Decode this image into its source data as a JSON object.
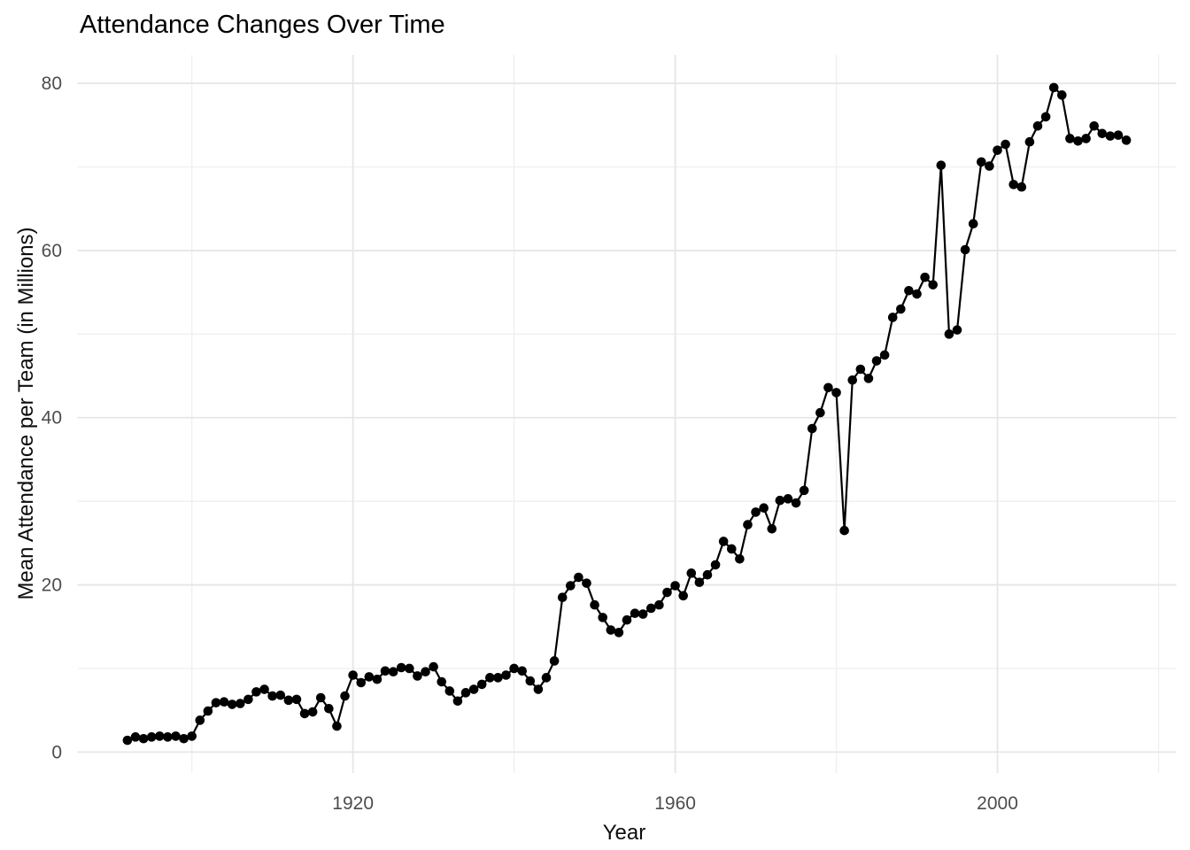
{
  "figure": {
    "title": "Attendance Changes Over Time",
    "background_color": "#ffffff"
  },
  "chart_data": {
    "type": "line",
    "title": "Attendance Changes Over Time",
    "xlabel": "Year",
    "ylabel": "Mean Attendance per Team (in Millions)",
    "grid": true,
    "legend_position": "none",
    "point_color": "#000000",
    "line_color": "#000000",
    "grid_major_color": "#e6e6e6",
    "grid_minor_color": "#eeeeee",
    "tick_label_color": "#4d4d4d",
    "x": [
      1892,
      1893,
      1894,
      1895,
      1896,
      1897,
      1898,
      1899,
      1900,
      1901,
      1902,
      1903,
      1904,
      1905,
      1906,
      1907,
      1908,
      1909,
      1910,
      1911,
      1912,
      1913,
      1914,
      1915,
      1916,
      1917,
      1918,
      1919,
      1920,
      1921,
      1922,
      1923,
      1924,
      1925,
      1926,
      1927,
      1928,
      1929,
      1930,
      1931,
      1932,
      1933,
      1934,
      1935,
      1936,
      1937,
      1938,
      1939,
      1940,
      1941,
      1942,
      1943,
      1944,
      1945,
      1946,
      1947,
      1948,
      1949,
      1950,
      1951,
      1952,
      1953,
      1954,
      1955,
      1956,
      1957,
      1958,
      1959,
      1960,
      1961,
      1962,
      1963,
      1964,
      1965,
      1966,
      1967,
      1968,
      1969,
      1970,
      1971,
      1972,
      1973,
      1974,
      1975,
      1976,
      1977,
      1978,
      1979,
      1980,
      1981,
      1982,
      1983,
      1984,
      1985,
      1986,
      1987,
      1988,
      1989,
      1990,
      1991,
      1992,
      1993,
      1994,
      1995,
      1996,
      1997,
      1998,
      1999,
      2000,
      2001,
      2002,
      2003,
      2004,
      2005,
      2006,
      2007,
      2008,
      2009,
      2010,
      2011,
      2012,
      2013,
      2014,
      2015,
      2016
    ],
    "values": [
      1.4,
      1.8,
      1.6,
      1.8,
      1.9,
      1.8,
      1.9,
      1.6,
      1.9,
      3.8,
      4.9,
      5.9,
      6.0,
      5.7,
      5.8,
      6.3,
      7.2,
      7.5,
      6.7,
      6.8,
      6.2,
      6.3,
      4.6,
      4.8,
      6.5,
      5.2,
      3.1,
      6.7,
      9.2,
      8.3,
      9.0,
      8.7,
      9.7,
      9.6,
      10.1,
      10.0,
      9.1,
      9.6,
      10.2,
      8.4,
      7.3,
      6.1,
      7.1,
      7.5,
      8.1,
      8.9,
      8.9,
      9.2,
      10.0,
      9.7,
      8.5,
      7.5,
      8.9,
      10.9,
      18.5,
      19.9,
      20.9,
      20.2,
      17.6,
      16.1,
      14.6,
      14.3,
      15.8,
      16.6,
      16.5,
      17.2,
      17.6,
      19.1,
      19.9,
      18.7,
      21.4,
      20.3,
      21.2,
      22.4,
      25.2,
      24.3,
      23.1,
      27.2,
      28.7,
      29.2,
      26.7,
      30.1,
      30.3,
      29.8,
      31.3,
      38.7,
      40.6,
      43.6,
      43.0,
      26.5,
      44.5,
      45.8,
      44.7,
      46.8,
      47.5,
      52.0,
      53.0,
      55.2,
      54.8,
      56.8,
      55.9,
      70.2,
      50.0,
      50.5,
      60.1,
      63.2,
      70.6,
      70.1,
      72.0,
      72.7,
      67.9,
      67.6,
      73.0,
      74.9,
      76.0,
      79.5,
      78.6,
      73.4,
      73.1,
      73.4,
      74.9,
      74.0,
      73.7,
      73.8,
      73.2
    ],
    "x_axis": {
      "major_breaks": [
        1920,
        1960,
        2000
      ],
      "tick_labels": [
        "1920",
        "1960",
        "2000"
      ],
      "minor_breaks": [
        1900,
        1940,
        1980,
        2020
      ]
    },
    "y_axis": {
      "major_breaks": [
        0,
        20,
        40,
        60,
        80
      ],
      "tick_labels": [
        "0",
        "20",
        "40",
        "60",
        "80"
      ],
      "minor_breaks": [
        10,
        30,
        50,
        70
      ],
      "range_expansion": 0.05
    }
  }
}
